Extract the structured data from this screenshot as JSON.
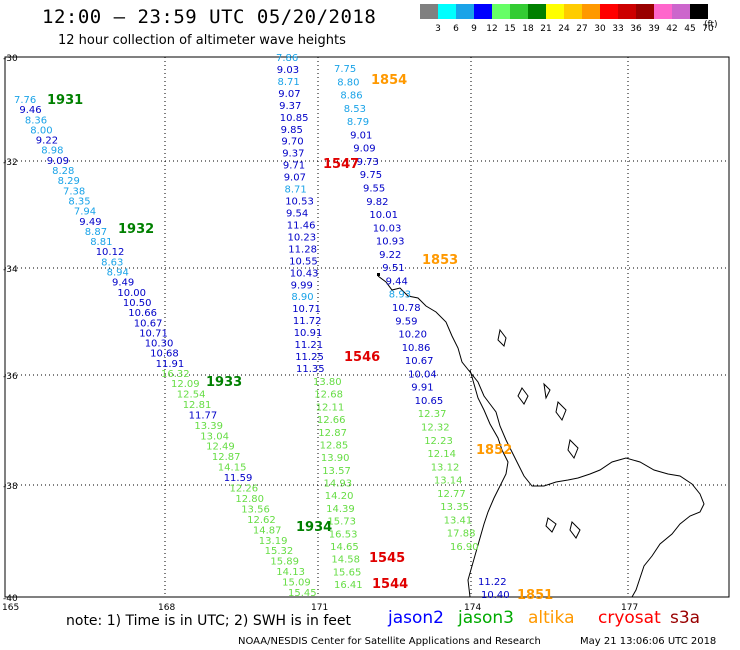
{
  "header": {
    "title": "12:00 — 23:59 UTC 05/20/2018",
    "subtitle": "12 hour collection of altimeter wave heights"
  },
  "legend": {
    "unit": "(ft)",
    "levels": [
      {
        "label": "3",
        "color": "#808080"
      },
      {
        "label": "6",
        "color": "#00ffff"
      },
      {
        "label": "9",
        "color": "#1aa3e8"
      },
      {
        "label": "12",
        "color": "#0000ff"
      },
      {
        "label": "15",
        "color": "#66ff66"
      },
      {
        "label": "18",
        "color": "#33cc33"
      },
      {
        "label": "21",
        "color": "#008000"
      },
      {
        "label": "24",
        "color": "#ffff00"
      },
      {
        "label": "27",
        "color": "#ffcc00"
      },
      {
        "label": "30",
        "color": "#ff9900"
      },
      {
        "label": "33",
        "color": "#ff0000"
      },
      {
        "label": "36",
        "color": "#cc0000"
      },
      {
        "label": "39",
        "color": "#990000"
      },
      {
        "label": "42",
        "color": "#ff66cc"
      },
      {
        "label": "45",
        "color": "#cc66cc"
      },
      {
        "label": "70",
        "color": "#000000"
      }
    ]
  },
  "axes": {
    "lat_labels": [
      "-30",
      "-32",
      "-34",
      "-36",
      "-38",
      "-40"
    ],
    "lon_labels": [
      "165",
      "168",
      "171",
      "174",
      "177"
    ]
  },
  "colors": {
    "blue": "#0000c8",
    "cyan": "#1aa3e8",
    "lgreen": "#66dd44",
    "dgreen": "#008000",
    "orange": "#ff9900",
    "red": "#e00000"
  },
  "tracks": {
    "t1931": [
      [
        "7.76",
        "c"
      ],
      [
        "9.46",
        "b"
      ],
      [
        "8.36",
        "c"
      ],
      [
        "8.00",
        "c"
      ],
      [
        "9.22",
        "b"
      ],
      [
        "8.98",
        "c"
      ],
      [
        "9.09",
        "b"
      ],
      [
        "8.28",
        "c"
      ],
      [
        "8.29",
        "c"
      ],
      [
        "7.38",
        "c"
      ],
      [
        "8.35",
        "c"
      ],
      [
        "7.94",
        "c"
      ],
      [
        "9.49",
        "b"
      ],
      [
        "8.87",
        "c"
      ],
      [
        "8.81",
        "c"
      ],
      [
        "10.12",
        "b"
      ],
      [
        "8.63",
        "c"
      ],
      [
        "8.94",
        "c"
      ],
      [
        "9.49",
        "b"
      ],
      [
        "10.00",
        "b"
      ],
      [
        "10.50",
        "b"
      ],
      [
        "10.66",
        "b"
      ],
      [
        "10.67",
        "b"
      ],
      [
        "10.71",
        "b"
      ],
      [
        "10.30",
        "b"
      ],
      [
        "10.68",
        "b"
      ],
      [
        "11.91",
        "b"
      ],
      [
        "16.32",
        "g"
      ]
    ],
    "t1933": [
      [
        "12.09",
        "g"
      ],
      [
        "12.54",
        "g"
      ],
      [
        "12.81",
        "g"
      ],
      [
        "11.77",
        "b"
      ],
      [
        "13.39",
        "g"
      ],
      [
        "13.04",
        "g"
      ],
      [
        "12.49",
        "g"
      ],
      [
        "12.87",
        "g"
      ],
      [
        "14.15",
        "g"
      ],
      [
        "11.59",
        "b"
      ],
      [
        "12.26",
        "g"
      ],
      [
        "12.80",
        "g"
      ],
      [
        "13.56",
        "g"
      ],
      [
        "12.62",
        "g"
      ],
      [
        "14.87",
        "g"
      ],
      [
        "13.19",
        "g"
      ],
      [
        "15.32",
        "g"
      ],
      [
        "15.89",
        "g"
      ],
      [
        "14.13",
        "g"
      ],
      [
        "15.09",
        "g"
      ],
      [
        "15.45",
        "g"
      ]
    ],
    "t1547": [
      [
        "7.86",
        "c"
      ],
      [
        "9.03",
        "b"
      ],
      [
        "8.71",
        "c"
      ],
      [
        "9.07",
        "b"
      ],
      [
        "9.37",
        "b"
      ],
      [
        "10.85",
        "b"
      ],
      [
        "9.85",
        "b"
      ],
      [
        "9.70",
        "b"
      ],
      [
        "9.37",
        "b"
      ],
      [
        "9.71",
        "b"
      ],
      [
        "9.07",
        "b"
      ],
      [
        "8.71",
        "c"
      ],
      [
        "10.53",
        "b"
      ],
      [
        "9.54",
        "b"
      ],
      [
        "11.46",
        "b"
      ],
      [
        "10.23",
        "b"
      ],
      [
        "11.28",
        "b"
      ],
      [
        "10.55",
        "b"
      ],
      [
        "10.43",
        "b"
      ],
      [
        "9.99",
        "b"
      ],
      [
        "8.90",
        "c"
      ],
      [
        "10.71",
        "b"
      ],
      [
        "11.72",
        "b"
      ],
      [
        "10.91",
        "b"
      ],
      [
        "11.21",
        "b"
      ],
      [
        "11.25",
        "b"
      ],
      [
        "11.35",
        "b"
      ]
    ],
    "t1545": [
      [
        "13.80",
        "g"
      ],
      [
        "12.68",
        "g"
      ],
      [
        "12.11",
        "g"
      ],
      [
        "12.66",
        "g"
      ],
      [
        "12.87",
        "g"
      ],
      [
        "12.85",
        "g"
      ],
      [
        "13.90",
        "g"
      ],
      [
        "13.57",
        "g"
      ],
      [
        "14.93",
        "g"
      ],
      [
        "14.20",
        "g"
      ],
      [
        "14.39",
        "g"
      ],
      [
        "15.73",
        "g"
      ],
      [
        "16.53",
        "g"
      ],
      [
        "14.65",
        "g"
      ],
      [
        "14.58",
        "g"
      ],
      [
        "15.65",
        "g"
      ],
      [
        "16.41",
        "g"
      ]
    ],
    "t1854": [
      [
        "7.75",
        "c"
      ],
      [
        "8.80",
        "c"
      ],
      [
        "8.86",
        "c"
      ],
      [
        "8.53",
        "c"
      ],
      [
        "8.79",
        "c"
      ],
      [
        "9.01",
        "b"
      ],
      [
        "9.09",
        "b"
      ],
      [
        "9.73",
        "b"
      ],
      [
        "9.75",
        "b"
      ],
      [
        "9.55",
        "b"
      ],
      [
        "9.82",
        "b"
      ],
      [
        "10.01",
        "b"
      ],
      [
        "10.03",
        "b"
      ],
      [
        "10.93",
        "b"
      ],
      [
        "9.22",
        "b"
      ],
      [
        "9.51",
        "b"
      ],
      [
        "9.44",
        "b"
      ],
      [
        "8.93",
        "c"
      ],
      [
        "10.78",
        "b"
      ],
      [
        "9.59",
        "b"
      ],
      [
        "10.20",
        "b"
      ],
      [
        "10.86",
        "b"
      ],
      [
        "10.67",
        "b"
      ],
      [
        "10.04",
        "b"
      ],
      [
        "9.91",
        "b"
      ],
      [
        "10.65",
        "b"
      ],
      [
        "12.37",
        "g"
      ],
      [
        "12.32",
        "g"
      ],
      [
        "12.23",
        "g"
      ],
      [
        "12.14",
        "g"
      ],
      [
        "13.12",
        "g"
      ],
      [
        "13.14",
        "g"
      ],
      [
        "12.77",
        "g"
      ],
      [
        "13.35",
        "g"
      ],
      [
        "13.41",
        "g"
      ],
      [
        "17.88",
        "g"
      ],
      [
        "16.90",
        "g"
      ]
    ],
    "t1851": [
      [
        "11.22",
        "b"
      ],
      [
        "10.40",
        "b"
      ]
    ]
  },
  "time_labels": [
    {
      "text": "1931",
      "color": "dgreen"
    },
    {
      "text": "1932",
      "color": "dgreen"
    },
    {
      "text": "1933",
      "color": "dgreen"
    },
    {
      "text": "1934",
      "color": "dgreen"
    },
    {
      "text": "1547",
      "color": "red"
    },
    {
      "text": "1546",
      "color": "red"
    },
    {
      "text": "1545",
      "color": "red"
    },
    {
      "text": "1544",
      "color": "red"
    },
    {
      "text": "1854",
      "color": "orange"
    },
    {
      "text": "1853",
      "color": "orange"
    },
    {
      "text": "1852",
      "color": "orange"
    },
    {
      "text": "1851",
      "color": "orange"
    }
  ],
  "footer": {
    "note": "note:  1) Time is in UTC;  2) SWH is in feet",
    "satellites": [
      {
        "name": "jason2",
        "color": "#0000ff"
      },
      {
        "name": "jason3",
        "color": "#00aa00"
      },
      {
        "name": "altika",
        "color": "#ff9900"
      },
      {
        "name": "cryosat",
        "color": "#ff0000"
      },
      {
        "name": "s3a",
        "color": "#990000"
      }
    ],
    "credit": "NOAA/NESDIS Center for Satellite Applications and Research",
    "timestamp": "May 21 13:06:06 UTC 2018"
  }
}
